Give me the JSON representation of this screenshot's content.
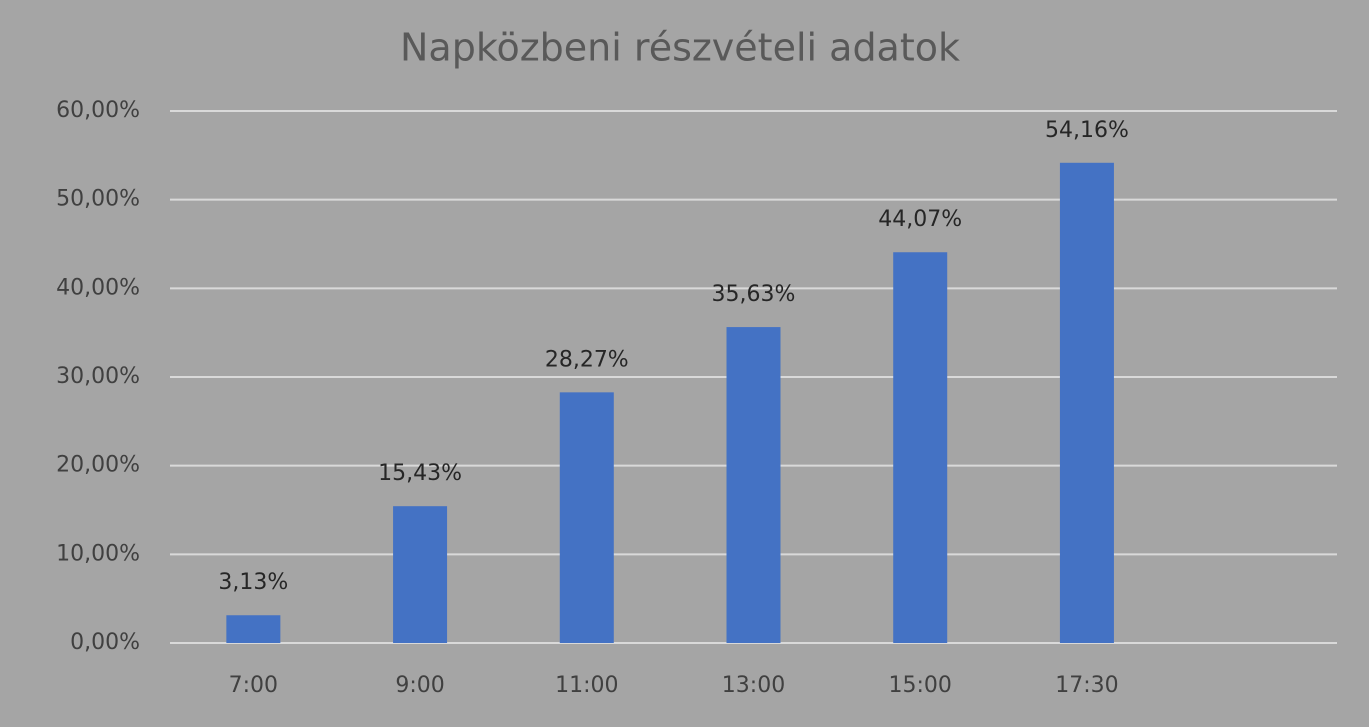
{
  "chart_data": {
    "type": "bar",
    "title": "Napközbeni részvételi adatok",
    "categories": [
      "7:00",
      "9:00",
      "11:00",
      "13:00",
      "15:00",
      "17:30",
      null
    ],
    "values": [
      3.13,
      15.43,
      28.27,
      35.63,
      44.07,
      54.16,
      null
    ],
    "value_labels": [
      "3,13%",
      "15,43%",
      "28,27%",
      "35,63%",
      "44,07%",
      "54,16%",
      null
    ],
    "color": "#4472c4",
    "ylim": [
      0,
      60
    ],
    "yticks": [
      {
        "value": 0,
        "label": "0,00%"
      },
      {
        "value": 10,
        "label": "10,00%"
      },
      {
        "value": 20,
        "label": "20,00%"
      },
      {
        "value": 30,
        "label": "30,00%"
      },
      {
        "value": 40,
        "label": "40,00%"
      },
      {
        "value": 50,
        "label": "50,00%"
      },
      {
        "value": 60,
        "label": "60,00%"
      }
    ],
    "grid": true
  }
}
